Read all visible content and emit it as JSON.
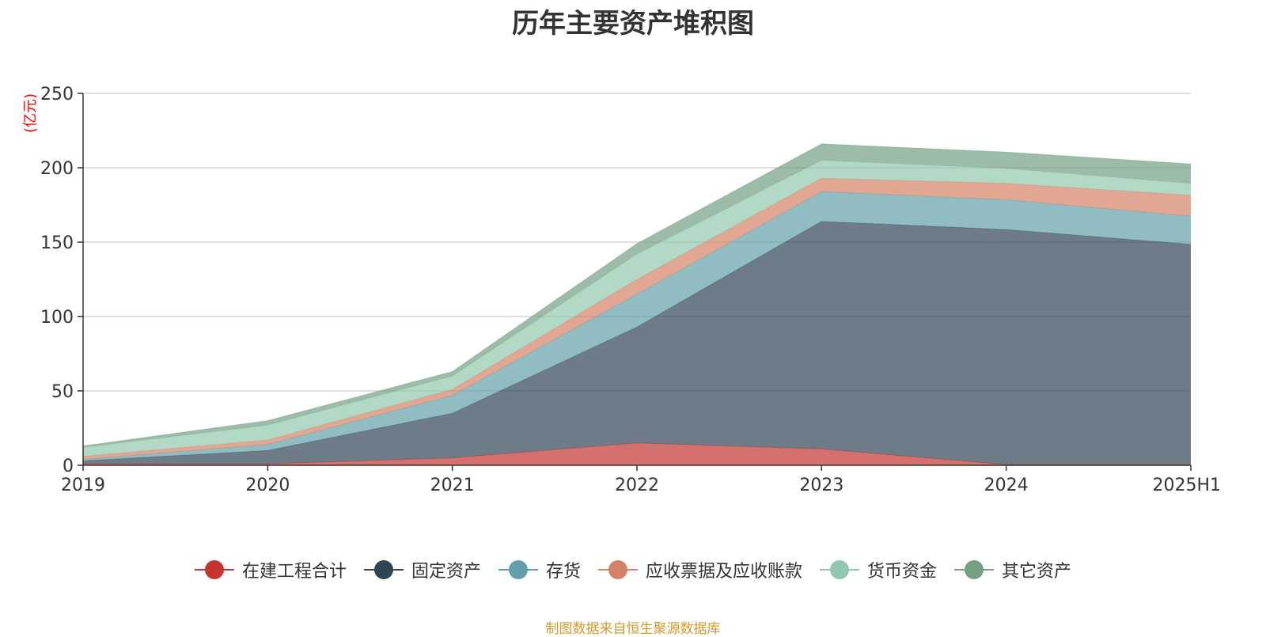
{
  "chart_data": {
    "type": "area",
    "stacked": true,
    "title": "历年主要资产堆积图",
    "unit_label": "(亿元)",
    "categories": [
      "2019",
      "2020",
      "2021",
      "2022",
      "2023",
      "2024",
      "2025H1"
    ],
    "ylim": [
      0,
      250
    ],
    "yticks": [
      0,
      50,
      100,
      150,
      200,
      250
    ],
    "grid": true,
    "legend_position": "bottom",
    "series": [
      {
        "name": "在建工程合计",
        "color": "#c23531",
        "values": [
          1,
          1,
          5,
          15,
          11,
          0.5,
          0.5
        ]
      },
      {
        "name": "固定资产",
        "color": "#2f4554",
        "values": [
          2,
          9,
          30,
          78,
          153,
          158,
          148
        ]
      },
      {
        "name": "存货",
        "color": "#61a0a8",
        "values": [
          1,
          4,
          12,
          22,
          20,
          20,
          19
        ]
      },
      {
        "name": "应收票据及应收账款",
        "color": "#d48265",
        "values": [
          2,
          3,
          4,
          10,
          9,
          11,
          14
        ]
      },
      {
        "name": "货币资金",
        "color": "#91c7ae",
        "values": [
          6,
          10,
          9,
          17,
          12,
          10,
          8
        ]
      },
      {
        "name": "其它资产",
        "color": "#749f83",
        "values": [
          1,
          3,
          3,
          7,
          11,
          11,
          13
        ]
      }
    ]
  },
  "source_note": "制图数据来自恒生聚源数据库"
}
